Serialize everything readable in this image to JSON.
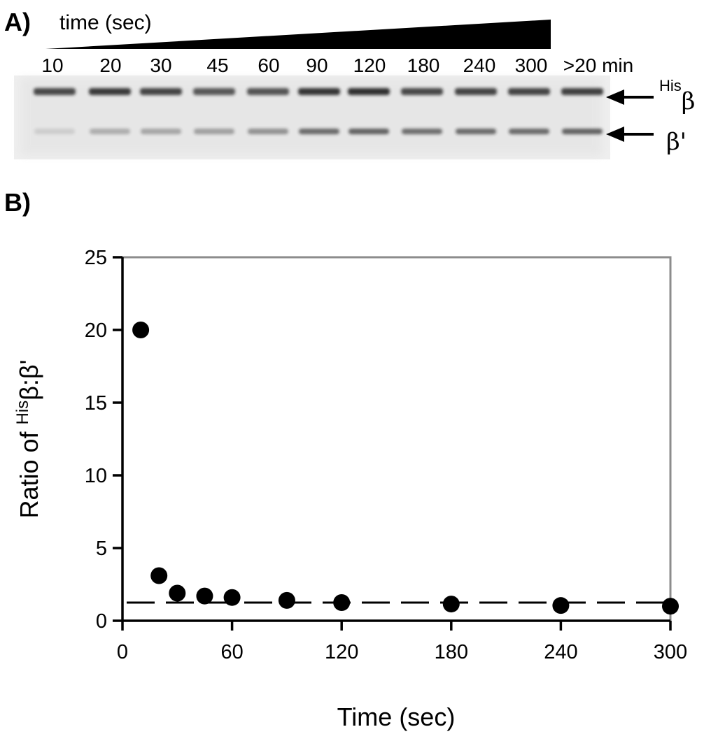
{
  "panel_a": {
    "label": "A)",
    "wedge_label": "time (sec)",
    "lanes": [
      "10",
      "20",
      "30",
      "45",
      "60",
      "90",
      "120",
      "180",
      "240",
      "300",
      ">20 min"
    ],
    "upper_band_intensity": [
      0.78,
      0.85,
      0.8,
      0.7,
      0.72,
      0.88,
      0.9,
      0.78,
      0.8,
      0.8,
      0.82
    ],
    "lower_band_intensity": [
      0.12,
      0.28,
      0.32,
      0.35,
      0.42,
      0.62,
      0.66,
      0.6,
      0.62,
      0.62,
      0.66
    ],
    "bands": {
      "upper": {
        "sup": "His",
        "symbol": "β"
      },
      "lower": {
        "symbol": "β'"
      }
    }
  },
  "panel_b": {
    "label": "B)"
  },
  "chart_data": {
    "type": "scatter",
    "title": "",
    "xlabel": "Time (sec)",
    "ylabel": {
      "prefix": "Ratio of ",
      "sup": "His",
      "suffix": "β:β'"
    },
    "x_ticks": [
      0,
      60,
      120,
      180,
      240,
      300
    ],
    "y_ticks": [
      0,
      5,
      10,
      15,
      20,
      25
    ],
    "xlim": [
      0,
      300
    ],
    "ylim": [
      0,
      25
    ],
    "grid": false,
    "series": [
      {
        "x": [
          10,
          20,
          30,
          45,
          60,
          90,
          120,
          180,
          240,
          300
        ],
        "y": [
          20.0,
          3.1,
          1.9,
          1.7,
          1.6,
          1.4,
          1.25,
          1.15,
          1.05,
          1.0
        ]
      }
    ],
    "reference_line": {
      "y": 1.25,
      "style": "dashed"
    }
  }
}
